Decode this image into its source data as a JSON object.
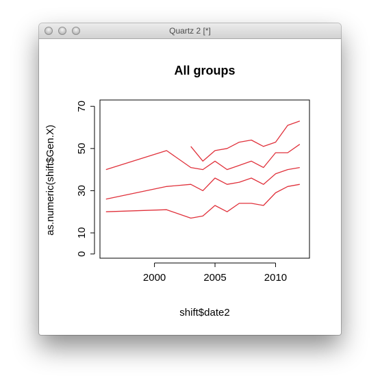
{
  "window": {
    "title": "Quartz 2 [*]",
    "controls": [
      "close",
      "minimize",
      "zoom"
    ]
  },
  "chart_data": {
    "type": "line",
    "title": "All groups",
    "xlabel": "shift$date2",
    "ylabel": "as.numeric(shift$Gen.X)",
    "xlim": [
      1995.5,
      2012.8
    ],
    "ylim": [
      -2,
      73
    ],
    "xticks": [
      2000,
      2005,
      2010
    ],
    "yticks": [
      0,
      10,
      30,
      50,
      70
    ],
    "grid": false,
    "series_color": "#e0303a",
    "series": [
      {
        "x": [
          1996,
          2001,
          2003,
          2004,
          2005,
          2006,
          2007,
          2008,
          2009,
          2010,
          2011,
          2012
        ],
        "values": [
          20,
          21,
          17,
          18,
          23,
          20,
          24,
          24,
          23,
          29,
          32,
          33
        ]
      },
      {
        "x": [
          1996,
          2001,
          2003,
          2004,
          2005,
          2006,
          2007,
          2008,
          2009,
          2010,
          2011,
          2012
        ],
        "values": [
          26,
          32,
          33,
          30,
          36,
          33,
          34,
          36,
          33,
          38,
          40,
          41
        ]
      },
      {
        "x": [
          1996,
          2001,
          2003,
          2004,
          2005,
          2006,
          2007,
          2008,
          2009,
          2010,
          2011,
          2012
        ],
        "values": [
          40,
          49,
          41,
          40,
          44,
          40,
          42,
          44,
          41,
          48,
          48,
          52
        ]
      },
      {
        "x": [
          2003,
          2004,
          2005,
          2006,
          2007,
          2008,
          2009,
          2010,
          2011,
          2012
        ],
        "values": [
          51,
          44,
          49,
          50,
          53,
          54,
          51,
          53,
          61,
          63
        ]
      }
    ]
  }
}
